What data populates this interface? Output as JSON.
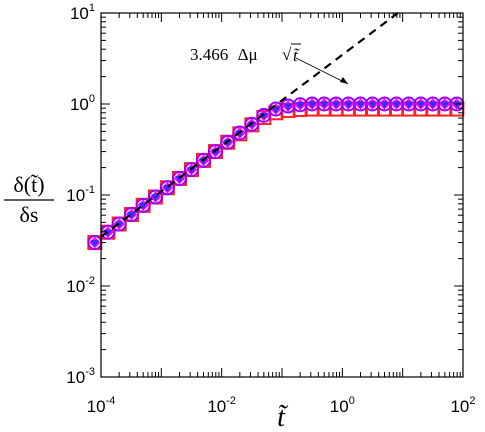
{
  "chart_data": {
    "type": "scatter",
    "x_scale": "log",
    "y_scale": "log",
    "xlim": [
      0.0001,
      100
    ],
    "ylim": [
      0.001,
      10
    ],
    "x_ticks": [
      {
        "value": 0.0001,
        "base": "10",
        "exp": "-4"
      },
      {
        "value": 0.01,
        "base": "10",
        "exp": "-2"
      },
      {
        "value": 1,
        "base": "10",
        "exp": "0"
      },
      {
        "value": 100,
        "base": "10",
        "exp": "2"
      }
    ],
    "y_ticks": [
      {
        "value": 0.001,
        "base": "10",
        "exp": "-3"
      },
      {
        "value": 0.01,
        "base": "10",
        "exp": "-2"
      },
      {
        "value": 0.1,
        "base": "10",
        "exp": "-1"
      },
      {
        "value": 1,
        "base": "10",
        "exp": "0"
      },
      {
        "value": 10,
        "base": "10",
        "exp": "1"
      }
    ],
    "xlabel": "t̃",
    "ylabel": {
      "numerator": "δ(t̃)",
      "denominator": "δs"
    },
    "annotation": {
      "text": "3.466 Δμ √t̃",
      "coef": "3.466",
      "symbols": "Δμ",
      "var": "t̃"
    },
    "line": {
      "style": "dashed",
      "color": "#000000",
      "coef": 3.466,
      "exponent": 0.5,
      "x_range": [
        0.0001,
        100
      ]
    },
    "x": [
      7.9e-05,
      0.00013,
      0.0002,
      0.00032,
      0.0005,
      0.0008,
      0.00126,
      0.002,
      0.00316,
      0.005,
      0.0079,
      0.0126,
      0.02,
      0.0316,
      0.05,
      0.079,
      0.126,
      0.2,
      0.316,
      0.5,
      0.79,
      1.26,
      2,
      3.16,
      5,
      7.9,
      12.6,
      20,
      31.6,
      50,
      79
    ],
    "series": [
      {
        "marker": "square",
        "color": "#ff2020",
        "fill": "none",
        "values": [
          0.03,
          0.039,
          0.048,
          0.061,
          0.077,
          0.095,
          0.12,
          0.152,
          0.19,
          0.24,
          0.3,
          0.38,
          0.47,
          0.59,
          0.71,
          0.8,
          0.85,
          0.87,
          0.88,
          0.88,
          0.88,
          0.88,
          0.88,
          0.88,
          0.88,
          0.88,
          0.88,
          0.88,
          0.88,
          0.88,
          0.88
        ]
      },
      {
        "marker": "circle",
        "color": "#9b00ff",
        "fill": "none",
        "values": [
          0.03,
          0.039,
          0.048,
          0.061,
          0.077,
          0.095,
          0.12,
          0.152,
          0.19,
          0.24,
          0.3,
          0.38,
          0.48,
          0.6,
          0.75,
          0.88,
          0.95,
          0.98,
          1.0,
          1.0,
          1.0,
          1.0,
          1.0,
          1.0,
          1.0,
          1.0,
          1.0,
          1.0,
          1.0,
          1.0,
          1.0
        ]
      },
      {
        "marker": "diamond",
        "color": "#ff00ff",
        "fill": "#ff00ff",
        "values": [
          0.03,
          0.039,
          0.048,
          0.061,
          0.077,
          0.095,
          0.12,
          0.152,
          0.19,
          0.24,
          0.3,
          0.38,
          0.48,
          0.6,
          0.75,
          0.88,
          0.95,
          0.98,
          1.0,
          1.0,
          1.0,
          1.0,
          1.0,
          1.0,
          1.0,
          1.0,
          1.0,
          1.0,
          1.0,
          1.0,
          1.0
        ]
      },
      {
        "marker": "triangle-down",
        "color": "#3030ff",
        "fill": "#3030ff",
        "values": [
          0.03,
          0.039,
          0.048,
          0.061,
          0.077,
          0.095,
          0.12,
          0.152,
          0.19,
          0.24,
          0.3,
          0.38,
          0.48,
          0.6,
          0.75,
          0.88,
          0.95,
          0.98,
          1.0,
          1.0,
          1.0,
          1.0,
          1.0,
          1.0,
          1.0,
          1.0,
          1.0,
          1.0,
          1.0,
          1.0,
          1.0
        ]
      }
    ]
  }
}
